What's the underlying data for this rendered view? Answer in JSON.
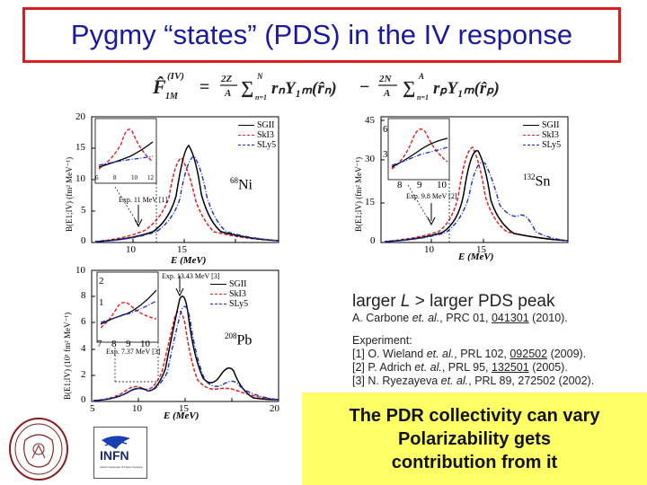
{
  "title": "Pygmy “states” (PDS) in the IV response",
  "formula": {
    "lhs": "F̂",
    "lhs_sup": "(IV)",
    "lhs_sub": "1M",
    "eq": "=",
    "coef1_num": "2Z",
    "coef1_den": "A",
    "sum1": "∑",
    "sum1_top": "N",
    "sum1_bot": "n=1",
    "term1": "rₙY₁ₘ(r̂ₙ)",
    "minus": "−",
    "coef2_num": "2N",
    "coef2_den": "A",
    "sum2": "∑",
    "sum2_top": "A",
    "sum2_bot": "n=1",
    "term2": "rₚY₁ₘ(r̂ₚ)"
  },
  "colors": {
    "title_border": "#d81e1e",
    "title_text": "#1a1aa0",
    "sgii": "#000000",
    "ski3": "#e02020",
    "sly5": "#1a2fd0",
    "highlight": "#ffff66"
  },
  "legend": [
    "SGII",
    "SkI3",
    "SLy5"
  ],
  "panels": {
    "ni": {
      "nucleus_mass": "68",
      "nucleus_symbol": "Ni",
      "exp": "Exp. 11 MeV [1]",
      "ylabel": "B(E1;IV) (fm² MeV⁻¹)",
      "xlabel": "E (MeV)",
      "yticks": [
        "0",
        "5",
        "10",
        "15",
        "20"
      ],
      "xticks": [
        "10",
        "15"
      ],
      "inset_ticks": [
        "6",
        "8",
        "10",
        "12"
      ]
    },
    "sn": {
      "nucleus_mass": "132",
      "nucleus_symbol": "Sn",
      "exp": "Exp. 9.8 MeV [2]",
      "ylabel": "B(E1;IV) (fm² MeV⁻¹)",
      "xlabel": "E (MeV)",
      "yticks": [
        "0",
        "15",
        "30",
        "45"
      ],
      "xticks": [
        "10",
        "15"
      ],
      "inset_ticks": [
        "8",
        "9",
        "10"
      ],
      "inset_yticks": [
        "3",
        "6"
      ]
    },
    "pb": {
      "nucleus_mass": "208",
      "nucleus_symbol": "Pb",
      "exp": "Exp. 7.37 MeV [3]",
      "exp_top": "Exp. 13.43 MeV [3]",
      "ylabel": "B(E1;IV) (10¹ fm² MeV⁻¹)",
      "xlabel": "E (MeV)",
      "yticks": [
        "0",
        "2",
        "4",
        "6",
        "8",
        "10"
      ],
      "xticks": [
        "5",
        "10",
        "15",
        "20"
      ],
      "inset_ticks": [
        "7",
        "8",
        "9",
        "10"
      ],
      "inset_yticks": [
        "1",
        "2"
      ]
    }
  },
  "refs": {
    "line1_a": "larger",
    "line1_L": "L",
    "line1_b": "> larger PDS peak",
    "carbone_a": "A. Carbone",
    "carbone_etal": "et. al.",
    "carbone_b": ", PRC 01,",
    "carbone_num": "041301",
    "carbone_year": "(2010).",
    "experiment": "Experiment:",
    "r1_a": "[1] O. Wieland",
    "r1_etal": "et. al.",
    "r1_b": ", PRL 102,",
    "r1_num": "092502",
    "r1_year": "(2009).",
    "r2_a": "[2] P. Adrich",
    "r2_etal": "et. al.",
    "r2_b": ", PRL 95,",
    "r2_num": "132501",
    "r2_year": "(2005).",
    "r3_a": "[3] N. Ryezayeva",
    "r3_etal": "et. al.",
    "r3_b": ", PRL 89, 272502 (2002)."
  },
  "highlight": {
    "line1": "The PDR collectivity can vary",
    "line2": "Polarizability gets",
    "line3": "contribution from it"
  },
  "logos": {
    "infn": "INFN",
    "infn_sub": "Istituto Nazionale di Fisica Nucleare"
  }
}
